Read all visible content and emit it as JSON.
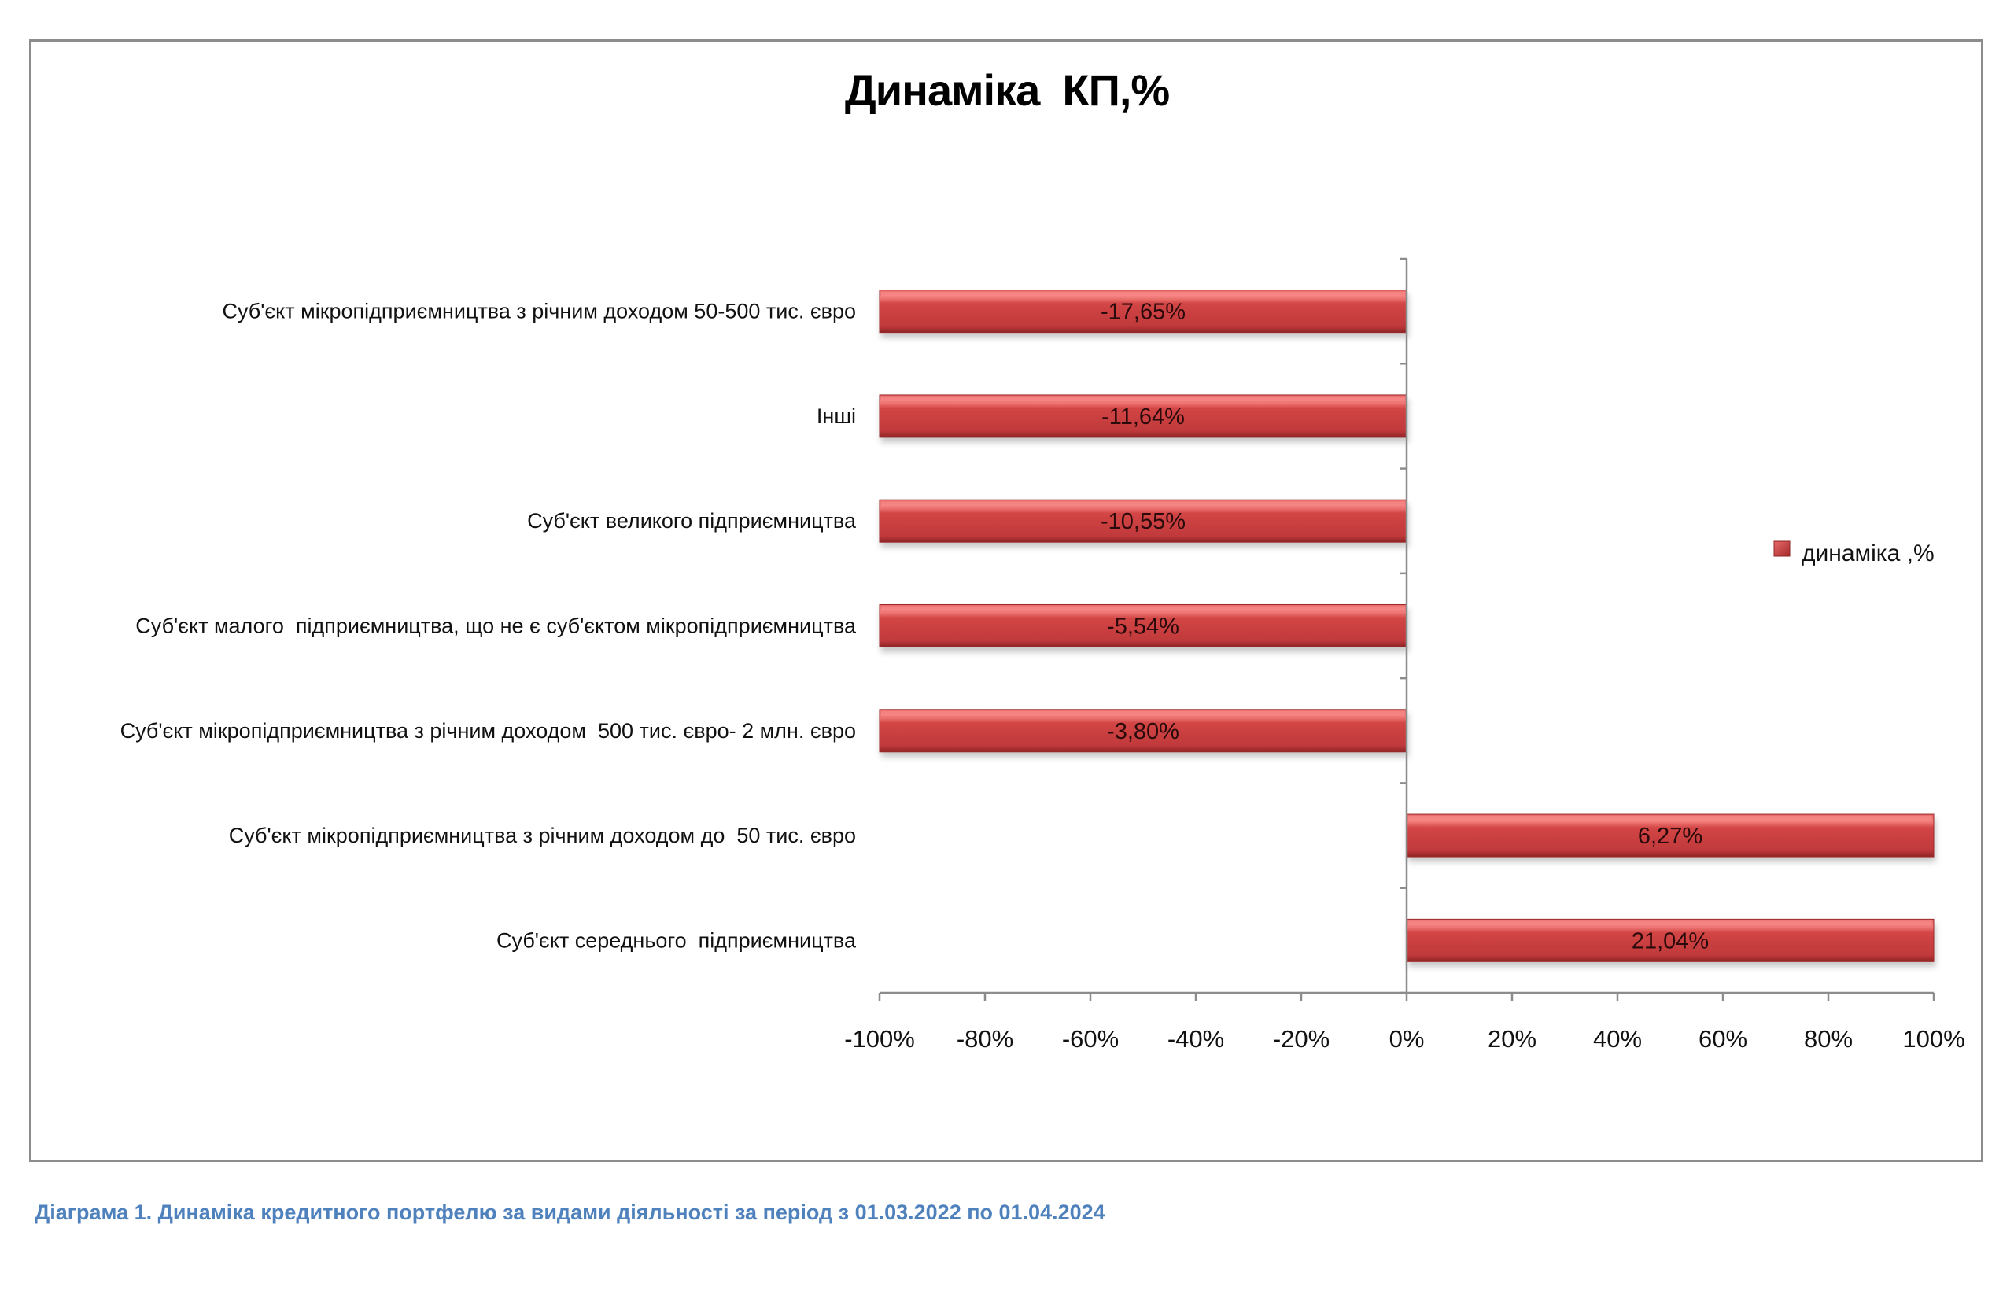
{
  "chart_data": {
    "type": "bar",
    "orientation": "horizontal",
    "title": "Динаміка  КП,%",
    "categories": [
      "Суб'єкт мікропідприємництва з річним доходом 50-500 тис. євро",
      "Інші",
      "Суб'єкт великого підприємництва",
      "Суб'єкт малого  підприємництва, що не є суб'єктом мікропідприємництва",
      "Суб'єкт мікропідприємництва з річним доходом  500 тис. євро- 2 млн. євро",
      "Суб'єкт мікропідприємництва з річним доходом до  50 тис. євро",
      "Суб'єкт середнього  підприємництва"
    ],
    "series": [
      {
        "name": "динаміка ,%",
        "values": [
          -17.65,
          -11.64,
          -10.55,
          -5.54,
          -3.8,
          6.27,
          21.04
        ],
        "data_labels": [
          "-17,65%",
          "-11,64%",
          "-10,55%",
          "-5,54%",
          "-3,80%",
          "6,27%",
          "21,04%"
        ],
        "color": "#c0393b"
      }
    ],
    "xlim": [
      -100,
      100
    ],
    "xticks": [
      -100,
      -80,
      -60,
      -40,
      -20,
      0,
      20,
      40,
      60,
      80,
      100
    ],
    "xtick_labels": [
      "-100%",
      "-80%",
      "-60%",
      "-40%",
      "-20%",
      "0%",
      "20%",
      "40%",
      "60%",
      "80%",
      "100%"
    ],
    "xlabel": "",
    "ylabel": "",
    "grid": false,
    "legend": {
      "entries": [
        "динаміка ,%"
      ],
      "placement": "right"
    },
    "note": "bars rendered spanning full axis side (to -100% / 100%) as in the original"
  },
  "caption": "Діаграма 1. Динаміка кредитного портфелю за видами діяльності за період з 01.03.2022 по 01.04.2024",
  "colors": {
    "bar": "#c0393b",
    "caption": "#4f81bd",
    "axis": "#8c8c8c",
    "frame": "#8c8c8c"
  }
}
